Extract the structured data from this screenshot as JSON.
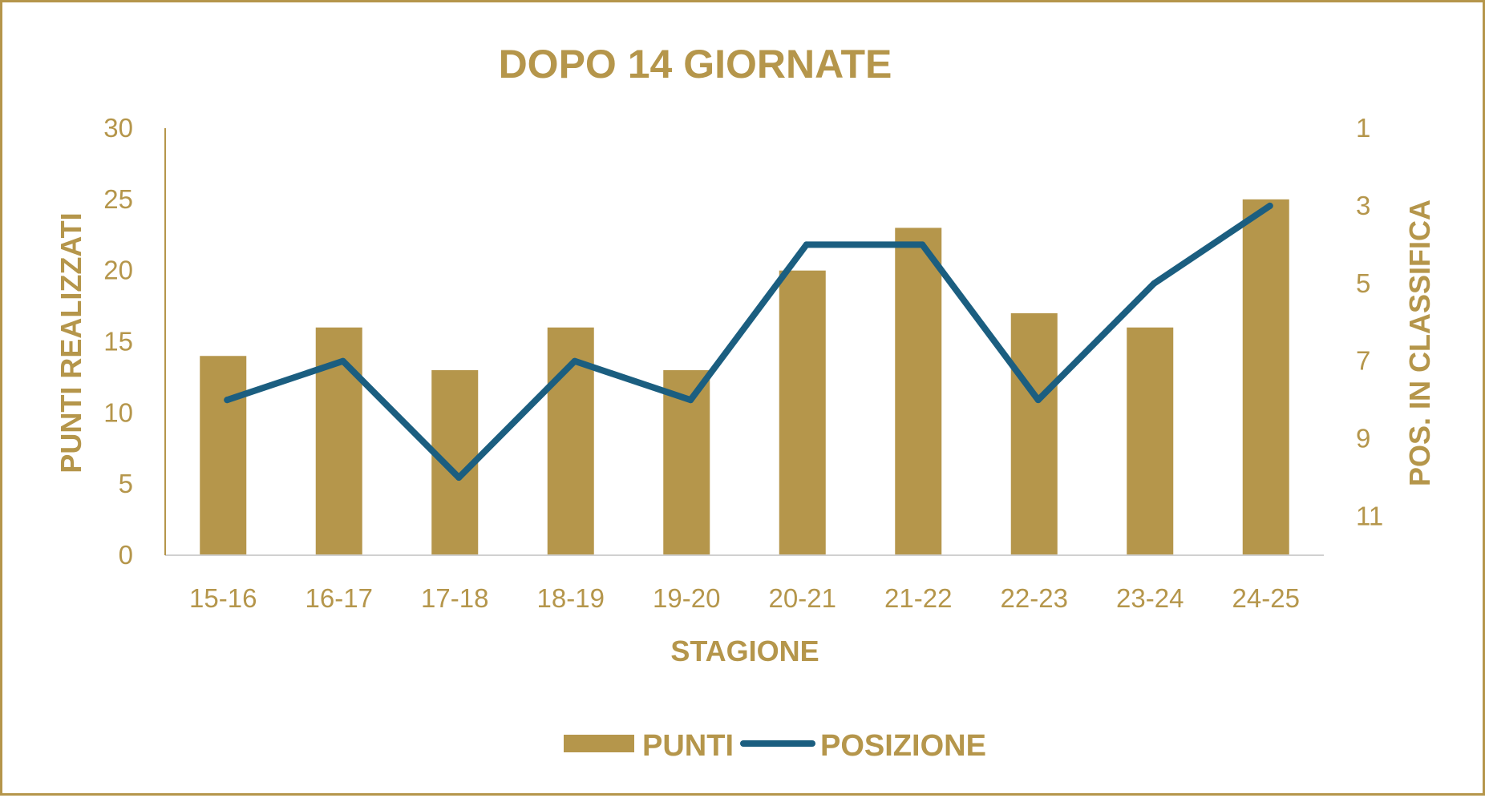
{
  "chart_data": {
    "type": "bar",
    "title": "DOPO 14 GIORNATE",
    "xlabel": "STAGIONE",
    "ylabel": "PUNTI REALIZZATI",
    "y2label": "POS. IN CLASSIFICA",
    "categories": [
      "15-16",
      "16-17",
      "17-18",
      "18-19",
      "19-20",
      "20-21",
      "21-22",
      "22-23",
      "23-24",
      "24-25"
    ],
    "series": [
      {
        "name": "PUNTI",
        "type": "bar",
        "axis": "left",
        "color": "#b5964b",
        "values": [
          14,
          16,
          13,
          16,
          13,
          20,
          23,
          17,
          16,
          25
        ]
      },
      {
        "name": "POSIZIONE",
        "type": "line",
        "axis": "right",
        "color": "#1b5e80",
        "values": [
          8,
          7,
          10,
          7,
          8,
          4,
          4,
          8,
          5,
          3
        ]
      }
    ],
    "ylim": [
      0,
      30
    ],
    "yticks": [
      "0",
      "5",
      "10",
      "15",
      "20",
      "25",
      "30"
    ],
    "y2lim": [
      1,
      12
    ],
    "y2_inverted": true,
    "y2ticks": [
      "1",
      "3",
      "5",
      "7",
      "9",
      "11"
    ],
    "grid": false,
    "legend": "bottom",
    "text_color": "#b5964b",
    "axis_color": "#d0d0d0"
  }
}
